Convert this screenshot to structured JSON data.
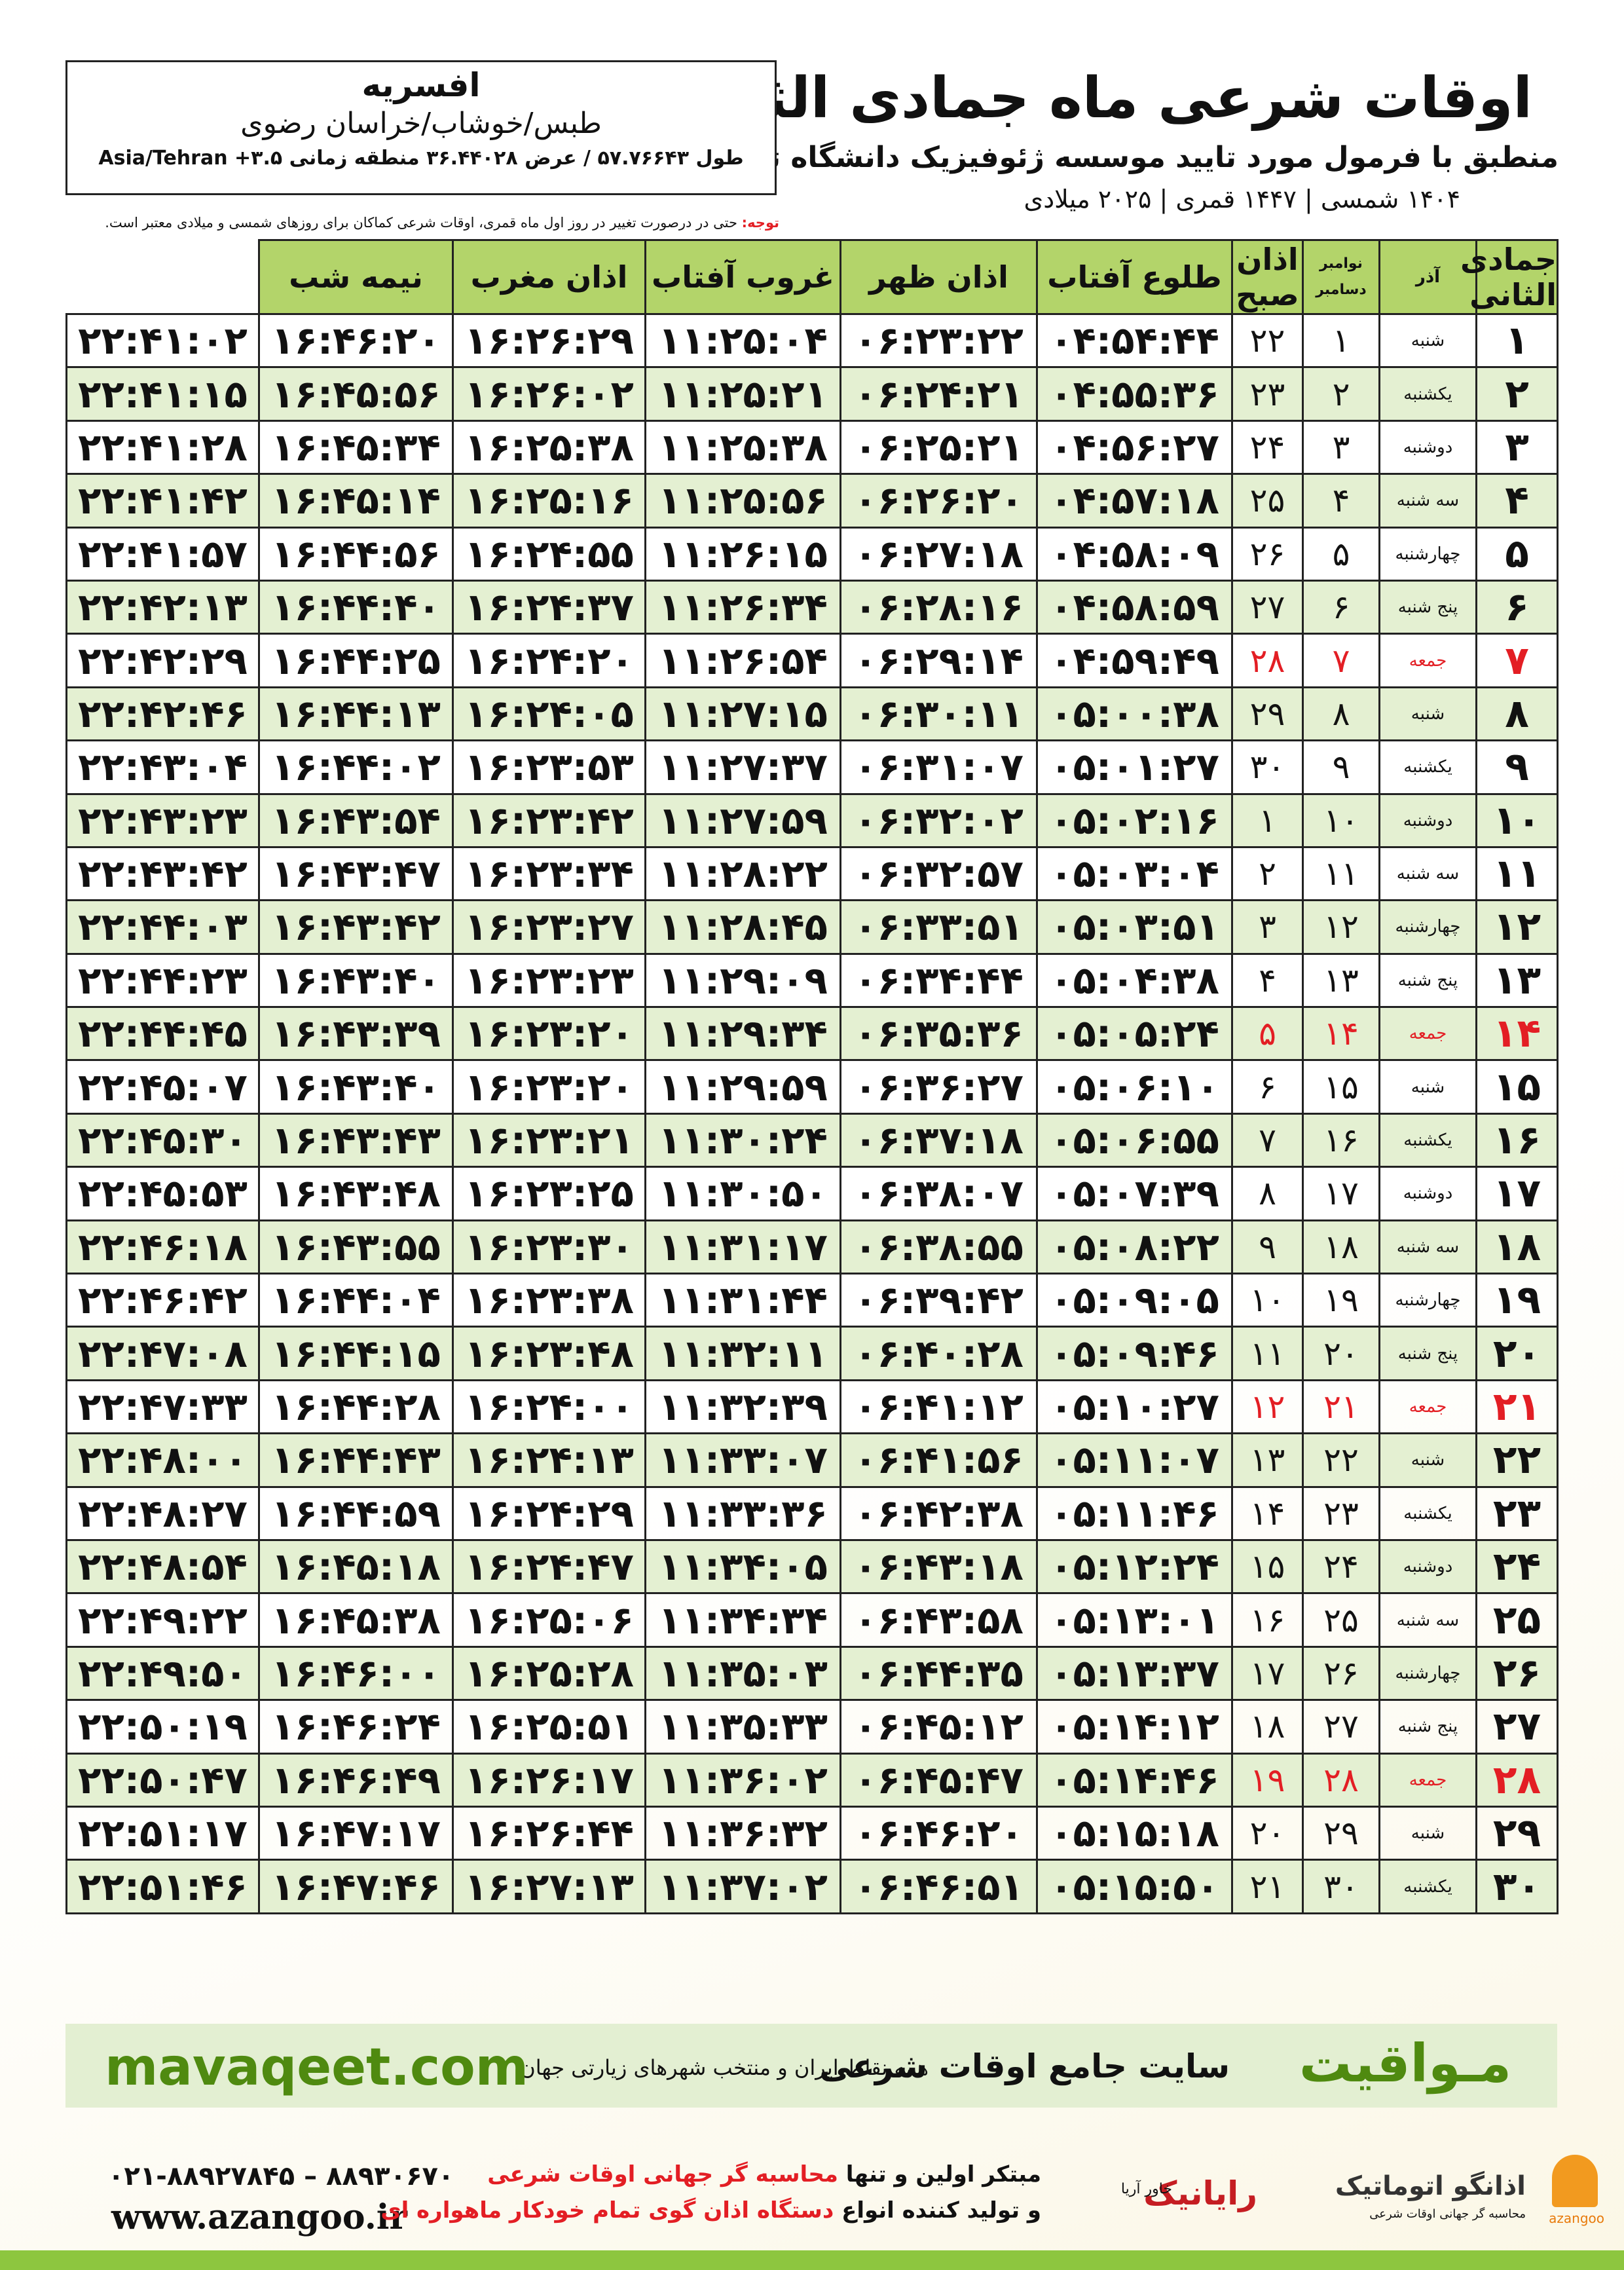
{
  "header": {
    "title": "اوقات شرعی ماه جمادی الثانی",
    "subtitle": "منطبق با فرمول مورد تایید موسسه ژئوفیزیک دانشگاه تهران",
    "dates": "۱۴۰۴ شمسی | ۱۴۴۷ قمری | ۲۰۲۵ میلادی"
  },
  "location": {
    "city": "افسریه",
    "region": "طبس/خوشاب/خراسان رضوی",
    "coords": "طول ۵۷.۷۶۶۴۳ / عرض ۳۶.۴۴۰۲۸ منطقه زمانی ۳.۵+ Asia/Tehran"
  },
  "note": {
    "label": "توجه:",
    "text": "حتی در درصورت تغییر در روز اول ماه قمری، اوقات شرعی کماکان برای روزهای شمسی و میلادی معتبر است."
  },
  "table": {
    "holiday_color": "#e31e24",
    "columns": [
      "جمادی الثانی",
      "آذر",
      [
        "نوامبر",
        "دسامبر"
      ],
      "اذان صبح",
      "طلوع آفتاب",
      "اذان ظهر",
      "غروب آفتاب",
      "اذان مغرب",
      "نیمه شب"
    ],
    "rows": [
      {
        "cells": [
          "۱",
          "شنبه",
          "۱",
          "۲۲",
          "۰۴:۵۴:۴۴",
          "۰۶:۲۳:۲۲",
          "۱۱:۲۵:۰۴",
          "۱۶:۲۶:۲۹",
          "۱۶:۴۶:۲۰",
          "۲۲:۴۱:۰۲"
        ]
      },
      {
        "cells": [
          "۲",
          "یکشنبه",
          "۲",
          "۲۳",
          "۰۴:۵۵:۳۶",
          "۰۶:۲۴:۲۱",
          "۱۱:۲۵:۲۱",
          "۱۶:۲۶:۰۲",
          "۱۶:۴۵:۵۶",
          "۲۲:۴۱:۱۵"
        ]
      },
      {
        "cells": [
          "۳",
          "دوشنبه",
          "۳",
          "۲۴",
          "۰۴:۵۶:۲۷",
          "۰۶:۲۵:۲۱",
          "۱۱:۲۵:۳۸",
          "۱۶:۲۵:۳۸",
          "۱۶:۴۵:۳۴",
          "۲۲:۴۱:۲۸"
        ]
      },
      {
        "cells": [
          "۴",
          "سه شنبه",
          "۴",
          "۲۵",
          "۰۴:۵۷:۱۸",
          "۰۶:۲۶:۲۰",
          "۱۱:۲۵:۵۶",
          "۱۶:۲۵:۱۶",
          "۱۶:۴۵:۱۴",
          "۲۲:۴۱:۴۲"
        ]
      },
      {
        "cells": [
          "۵",
          "چهارشنبه",
          "۵",
          "۲۶",
          "۰۴:۵۸:۰۹",
          "۰۶:۲۷:۱۸",
          "۱۱:۲۶:۱۵",
          "۱۶:۲۴:۵۵",
          "۱۶:۴۴:۵۶",
          "۲۲:۴۱:۵۷"
        ]
      },
      {
        "cells": [
          "۶",
          "پنج شنبه",
          "۶",
          "۲۷",
          "۰۴:۵۸:۵۹",
          "۰۶:۲۸:۱۶",
          "۱۱:۲۶:۳۴",
          "۱۶:۲۴:۳۷",
          "۱۶:۴۴:۴۰",
          "۲۲:۴۲:۱۳"
        ]
      },
      {
        "cells": [
          "۷",
          "جمعه",
          "۷",
          "۲۸",
          "۰۴:۵۹:۴۹",
          "۰۶:۲۹:۱۴",
          "۱۱:۲۶:۵۴",
          "۱۶:۲۴:۲۰",
          "۱۶:۴۴:۲۵",
          "۲۲:۴۲:۲۹"
        ],
        "holiday": true
      },
      {
        "cells": [
          "۸",
          "شنبه",
          "۸",
          "۲۹",
          "۰۵:۰۰:۳۸",
          "۰۶:۳۰:۱۱",
          "۱۱:۲۷:۱۵",
          "۱۶:۲۴:۰۵",
          "۱۶:۴۴:۱۳",
          "۲۲:۴۲:۴۶"
        ]
      },
      {
        "cells": [
          "۹",
          "یکشنبه",
          "۹",
          "۳۰",
          "۰۵:۰۱:۲۷",
          "۰۶:۳۱:۰۷",
          "۱۱:۲۷:۳۷",
          "۱۶:۲۳:۵۳",
          "۱۶:۴۴:۰۲",
          "۲۲:۴۳:۰۴"
        ]
      },
      {
        "cells": [
          "۱۰",
          "دوشنبه",
          "۱۰",
          "۱",
          "۰۵:۰۲:۱۶",
          "۰۶:۳۲:۰۲",
          "۱۱:۲۷:۵۹",
          "۱۶:۲۳:۴۲",
          "۱۶:۴۳:۵۴",
          "۲۲:۴۳:۲۳"
        ]
      },
      {
        "cells": [
          "۱۱",
          "سه شنبه",
          "۱۱",
          "۲",
          "۰۵:۰۳:۰۴",
          "۰۶:۳۲:۵۷",
          "۱۱:۲۸:۲۲",
          "۱۶:۲۳:۳۴",
          "۱۶:۴۳:۴۷",
          "۲۲:۴۳:۴۲"
        ]
      },
      {
        "cells": [
          "۱۲",
          "چهارشنبه",
          "۱۲",
          "۳",
          "۰۵:۰۳:۵۱",
          "۰۶:۳۳:۵۱",
          "۱۱:۲۸:۴۵",
          "۱۶:۲۳:۲۷",
          "۱۶:۴۳:۴۲",
          "۲۲:۴۴:۰۳"
        ]
      },
      {
        "cells": [
          "۱۳",
          "پنج شنبه",
          "۱۳",
          "۴",
          "۰۵:۰۴:۳۸",
          "۰۶:۳۴:۴۴",
          "۱۱:۲۹:۰۹",
          "۱۶:۲۳:۲۳",
          "۱۶:۴۳:۴۰",
          "۲۲:۴۴:۲۳"
        ]
      },
      {
        "cells": [
          "۱۴",
          "جمعه",
          "۱۴",
          "۵",
          "۰۵:۰۵:۲۴",
          "۰۶:۳۵:۳۶",
          "۱۱:۲۹:۳۴",
          "۱۶:۲۳:۲۰",
          "۱۶:۴۳:۳۹",
          "۲۲:۴۴:۴۵"
        ],
        "holiday": true
      },
      {
        "cells": [
          "۱۵",
          "شنبه",
          "۱۵",
          "۶",
          "۰۵:۰۶:۱۰",
          "۰۶:۳۶:۲۷",
          "۱۱:۲۹:۵۹",
          "۱۶:۲۳:۲۰",
          "۱۶:۴۳:۴۰",
          "۲۲:۴۵:۰۷"
        ]
      },
      {
        "cells": [
          "۱۶",
          "یکشنبه",
          "۱۶",
          "۷",
          "۰۵:۰۶:۵۵",
          "۰۶:۳۷:۱۸",
          "۱۱:۳۰:۲۴",
          "۱۶:۲۳:۲۱",
          "۱۶:۴۳:۴۳",
          "۲۲:۴۵:۳۰"
        ]
      },
      {
        "cells": [
          "۱۷",
          "دوشنبه",
          "۱۷",
          "۸",
          "۰۵:۰۷:۳۹",
          "۰۶:۳۸:۰۷",
          "۱۱:۳۰:۵۰",
          "۱۶:۲۳:۲۵",
          "۱۶:۴۳:۴۸",
          "۲۲:۴۵:۵۳"
        ]
      },
      {
        "cells": [
          "۱۸",
          "سه شنبه",
          "۱۸",
          "۹",
          "۰۵:۰۸:۲۲",
          "۰۶:۳۸:۵۵",
          "۱۱:۳۱:۱۷",
          "۱۶:۲۳:۳۰",
          "۱۶:۴۳:۵۵",
          "۲۲:۴۶:۱۸"
        ]
      },
      {
        "cells": [
          "۱۹",
          "چهارشنبه",
          "۱۹",
          "۱۰",
          "۰۵:۰۹:۰۵",
          "۰۶:۳۹:۴۲",
          "۱۱:۳۱:۴۴",
          "۱۶:۲۳:۳۸",
          "۱۶:۴۴:۰۴",
          "۲۲:۴۶:۴۲"
        ]
      },
      {
        "cells": [
          "۲۰",
          "پنج شنبه",
          "۲۰",
          "۱۱",
          "۰۵:۰۹:۴۶",
          "۰۶:۴۰:۲۸",
          "۱۱:۳۲:۱۱",
          "۱۶:۲۳:۴۸",
          "۱۶:۴۴:۱۵",
          "۲۲:۴۷:۰۸"
        ]
      },
      {
        "cells": [
          "۲۱",
          "جمعه",
          "۲۱",
          "۱۲",
          "۰۵:۱۰:۲۷",
          "۰۶:۴۱:۱۲",
          "۱۱:۳۲:۳۹",
          "۱۶:۲۴:۰۰",
          "۱۶:۴۴:۲۸",
          "۲۲:۴۷:۳۳"
        ],
        "holiday": true
      },
      {
        "cells": [
          "۲۲",
          "شنبه",
          "۲۲",
          "۱۳",
          "۰۵:۱۱:۰۷",
          "۰۶:۴۱:۵۶",
          "۱۱:۳۳:۰۷",
          "۱۶:۲۴:۱۳",
          "۱۶:۴۴:۴۳",
          "۲۲:۴۸:۰۰"
        ]
      },
      {
        "cells": [
          "۲۳",
          "یکشنبه",
          "۲۳",
          "۱۴",
          "۰۵:۱۱:۴۶",
          "۰۶:۴۲:۳۸",
          "۱۱:۳۳:۳۶",
          "۱۶:۲۴:۲۹",
          "۱۶:۴۴:۵۹",
          "۲۲:۴۸:۲۷"
        ]
      },
      {
        "cells": [
          "۲۴",
          "دوشنبه",
          "۲۴",
          "۱۵",
          "۰۵:۱۲:۲۴",
          "۰۶:۴۳:۱۸",
          "۱۱:۳۴:۰۵",
          "۱۶:۲۴:۴۷",
          "۱۶:۴۵:۱۸",
          "۲۲:۴۸:۵۴"
        ]
      },
      {
        "cells": [
          "۲۵",
          "سه شنبه",
          "۲۵",
          "۱۶",
          "۰۵:۱۳:۰۱",
          "۰۶:۴۳:۵۸",
          "۱۱:۳۴:۳۴",
          "۱۶:۲۵:۰۶",
          "۱۶:۴۵:۳۸",
          "۲۲:۴۹:۲۲"
        ]
      },
      {
        "cells": [
          "۲۶",
          "چهارشنبه",
          "۲۶",
          "۱۷",
          "۰۵:۱۳:۳۷",
          "۰۶:۴۴:۳۵",
          "۱۱:۳۵:۰۳",
          "۱۶:۲۵:۲۸",
          "۱۶:۴۶:۰۰",
          "۲۲:۴۹:۵۰"
        ]
      },
      {
        "cells": [
          "۲۷",
          "پنج شنبه",
          "۲۷",
          "۱۸",
          "۰۵:۱۴:۱۲",
          "۰۶:۴۵:۱۲",
          "۱۱:۳۵:۳۳",
          "۱۶:۲۵:۵۱",
          "۱۶:۴۶:۲۴",
          "۲۲:۵۰:۱۹"
        ]
      },
      {
        "cells": [
          "۲۸",
          "جمعه",
          "۲۸",
          "۱۹",
          "۰۵:۱۴:۴۶",
          "۰۶:۴۵:۴۷",
          "۱۱:۳۶:۰۲",
          "۱۶:۲۶:۱۷",
          "۱۶:۴۶:۴۹",
          "۲۲:۵۰:۴۷"
        ],
        "holiday": true
      },
      {
        "cells": [
          "۲۹",
          "شنبه",
          "۲۹",
          "۲۰",
          "۰۵:۱۵:۱۸",
          "۰۶:۴۶:۲۰",
          "۱۱:۳۶:۳۲",
          "۱۶:۲۶:۴۴",
          "۱۶:۴۷:۱۷",
          "۲۲:۵۱:۱۷"
        ]
      },
      {
        "cells": [
          "۳۰",
          "یکشنبه",
          "۳۰",
          "۲۱",
          "۰۵:۱۵:۵۰",
          "۰۶:۴۶:۵۱",
          "۱۱:۳۷:۰۲",
          "۱۶:۲۷:۱۳",
          "۱۶:۴۷:۴۶",
          "۲۲:۵۱:۴۶"
        ]
      }
    ]
  },
  "banner": {
    "brand": "مـواقیت",
    "slogan": "سایت جامع اوقات شرعی",
    "coverage": "همه نقاط ایران و منتخب شهرهای زیارتی جهان",
    "site": "mavaqeet.com"
  },
  "footer": {
    "phones": "۰۲۱-۸۸۹۲۷۸۴۵ – ۸۸۹۳۰۶۷۰",
    "web": "www.azangoo.ir",
    "line1_a": "مبتکر اولین و تنها",
    "line1_b": "محاسبه گر جهانی اوقات شرعی",
    "line2_a": "و تولید کننده انواع",
    "line2_b": "دستگاه اذان گوی تمام خودکار ماهواره ای",
    "logo1": "رایانیک",
    "logo1_sub": "خاور آریا",
    "logo2": "اذانگو اتوماتیک",
    "logo2_sub": "محاسبه گر جهانی اوقات شرعی",
    "logo2_en": "azangoo"
  }
}
